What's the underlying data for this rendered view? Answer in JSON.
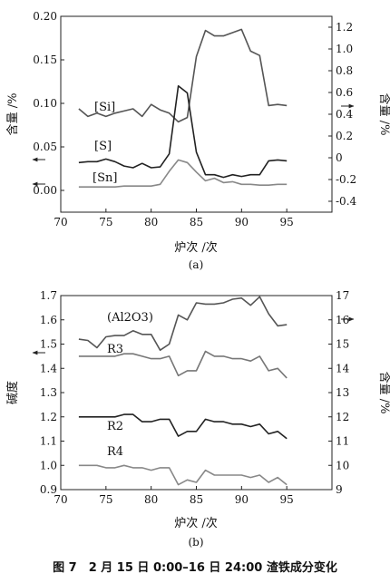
{
  "caption": "图 7　2 月 15 日 0:00–16 日 24:00 渣铁成分变化",
  "chart_data": [
    {
      "type": "line",
      "panel_label": "(a)",
      "xlabel": "炉次 /次",
      "ylabel_left": "含量 /%",
      "ylabel_right": "含量 /%",
      "xlim": [
        70,
        100
      ],
      "xticks": [
        70,
        75,
        80,
        85,
        90,
        95
      ],
      "ylim_left": [
        -0.025,
        0.2
      ],
      "yticks_left": [
        0.0,
        0.05,
        0.1,
        0.15,
        0.2
      ],
      "ylim_right": [
        -0.5,
        1.3
      ],
      "yticks_right": [
        -0.4,
        -0.2,
        0.0,
        0.2,
        0.4,
        0.6,
        0.8,
        1.0,
        1.2
      ],
      "tick_labels_left": [
        "0.00",
        "0.05",
        "0.10",
        "0.15",
        "0.20"
      ],
      "tick_labels_right": [
        "-0.4",
        "-0.2",
        "0",
        "0.2",
        "0.4",
        "0.6",
        "0.8",
        "1.0",
        "1.2"
      ],
      "tick_labels_x": [
        "70",
        "75",
        "80",
        "85",
        "90",
        "95"
      ],
      "series": [
        {
          "name": "[Si]",
          "axis": "right",
          "color": "#555555",
          "x": [
            72,
            73,
            74,
            75,
            76,
            77,
            78,
            79,
            80,
            81,
            82,
            83,
            84,
            85,
            86,
            87,
            88,
            89,
            90,
            91,
            92,
            93,
            94,
            95
          ],
          "y": [
            0.45,
            0.38,
            0.41,
            0.38,
            0.41,
            0.43,
            0.45,
            0.38,
            0.49,
            0.44,
            0.41,
            0.33,
            0.37,
            0.93,
            1.17,
            1.12,
            1.12,
            1.15,
            1.18,
            0.98,
            0.94,
            0.48,
            0.49,
            0.48
          ]
        },
        {
          "name": "[S]",
          "axis": "left",
          "color": "#222222",
          "x": [
            72,
            73,
            74,
            75,
            76,
            77,
            78,
            79,
            80,
            81,
            82,
            83,
            84,
            85,
            86,
            87,
            88,
            89,
            90,
            91,
            92,
            93,
            94,
            95
          ],
          "y": [
            0.032,
            0.033,
            0.033,
            0.036,
            0.033,
            0.028,
            0.026,
            0.031,
            0.026,
            0.027,
            0.042,
            0.12,
            0.112,
            0.044,
            0.018,
            0.018,
            0.015,
            0.018,
            0.016,
            0.018,
            0.018,
            0.034,
            0.035,
            0.034
          ]
        },
        {
          "name": "[Sn]",
          "axis": "left",
          "color": "#888888",
          "x": [
            72,
            73,
            74,
            75,
            76,
            77,
            78,
            79,
            80,
            81,
            82,
            83,
            84,
            85,
            86,
            87,
            88,
            89,
            90,
            91,
            92,
            93,
            94,
            95
          ],
          "y": [
            0.004,
            0.004,
            0.004,
            0.004,
            0.004,
            0.005,
            0.005,
            0.005,
            0.005,
            0.007,
            0.022,
            0.035,
            0.032,
            0.021,
            0.011,
            0.014,
            0.009,
            0.01,
            0.007,
            0.007,
            0.006,
            0.006,
            0.007,
            0.007
          ]
        }
      ],
      "annotations": [
        "[Si]",
        "[S]",
        "[Sn]"
      ]
    },
    {
      "type": "line",
      "panel_label": "(b)",
      "xlabel": "炉次 /次",
      "ylabel_left": "碱度",
      "ylabel_right": "含量 /%",
      "xlim": [
        70,
        100
      ],
      "xticks": [
        70,
        75,
        80,
        85,
        90,
        95
      ],
      "ylim_left": [
        0.9,
        1.7
      ],
      "yticks_left": [
        0.9,
        1.0,
        1.1,
        1.2,
        1.3,
        1.4,
        1.5,
        1.6,
        1.7
      ],
      "ylim_right": [
        9,
        17
      ],
      "yticks_right": [
        9,
        10,
        11,
        12,
        13,
        14,
        15,
        16,
        17
      ],
      "tick_labels_left": [
        "0.9",
        "1.0",
        "1.1",
        "1.2",
        "1.3",
        "1.4",
        "1.5",
        "1.6",
        "1.7"
      ],
      "tick_labels_right": [
        "9",
        "10",
        "11",
        "12",
        "13",
        "14",
        "15",
        "16",
        "17"
      ],
      "tick_labels_x": [
        "70",
        "75",
        "80",
        "85",
        "90",
        "95"
      ],
      "series": [
        {
          "name": "(Al2O3)",
          "axis": "right",
          "color": "#555555",
          "x": [
            72,
            73,
            74,
            75,
            76,
            77,
            78,
            79,
            80,
            81,
            82,
            83,
            84,
            85,
            86,
            87,
            88,
            89,
            90,
            91,
            92,
            93,
            94,
            95
          ],
          "y": [
            15.2,
            15.15,
            14.85,
            15.3,
            15.35,
            15.35,
            15.55,
            15.4,
            15.4,
            14.75,
            15.0,
            16.2,
            16.0,
            16.7,
            16.65,
            16.65,
            16.7,
            16.85,
            16.9,
            16.6,
            16.95,
            16.25,
            15.75,
            15.8
          ]
        },
        {
          "name": "R3",
          "axis": "left",
          "color": "#777777",
          "x": [
            72,
            73,
            74,
            75,
            76,
            77,
            78,
            79,
            80,
            81,
            82,
            83,
            84,
            85,
            86,
            87,
            88,
            89,
            90,
            91,
            92,
            93,
            94,
            95
          ],
          "y": [
            1.45,
            1.45,
            1.45,
            1.45,
            1.45,
            1.46,
            1.46,
            1.45,
            1.44,
            1.44,
            1.45,
            1.37,
            1.39,
            1.39,
            1.47,
            1.45,
            1.45,
            1.44,
            1.44,
            1.43,
            1.45,
            1.39,
            1.4,
            1.36
          ]
        },
        {
          "name": "R2",
          "axis": "left",
          "color": "#222222",
          "x": [
            72,
            73,
            74,
            75,
            76,
            77,
            78,
            79,
            80,
            81,
            82,
            83,
            84,
            85,
            86,
            87,
            88,
            89,
            90,
            91,
            92,
            93,
            94,
            95
          ],
          "y": [
            1.2,
            1.2,
            1.2,
            1.2,
            1.2,
            1.21,
            1.21,
            1.18,
            1.18,
            1.19,
            1.19,
            1.12,
            1.14,
            1.14,
            1.19,
            1.18,
            1.18,
            1.17,
            1.17,
            1.16,
            1.17,
            1.13,
            1.14,
            1.11
          ]
        },
        {
          "name": "R4",
          "axis": "left",
          "color": "#888888",
          "x": [
            72,
            73,
            74,
            75,
            76,
            77,
            78,
            79,
            80,
            81,
            82,
            83,
            84,
            85,
            86,
            87,
            88,
            89,
            90,
            91,
            92,
            93,
            94,
            95
          ],
          "y": [
            1.0,
            1.0,
            1.0,
            0.99,
            0.99,
            1.0,
            0.99,
            0.99,
            0.98,
            0.99,
            0.99,
            0.92,
            0.94,
            0.93,
            0.98,
            0.96,
            0.96,
            0.96,
            0.96,
            0.95,
            0.96,
            0.93,
            0.95,
            0.92
          ]
        }
      ],
      "annotations": [
        "(Al2O3)",
        "R3",
        "R2",
        "R4"
      ]
    }
  ]
}
